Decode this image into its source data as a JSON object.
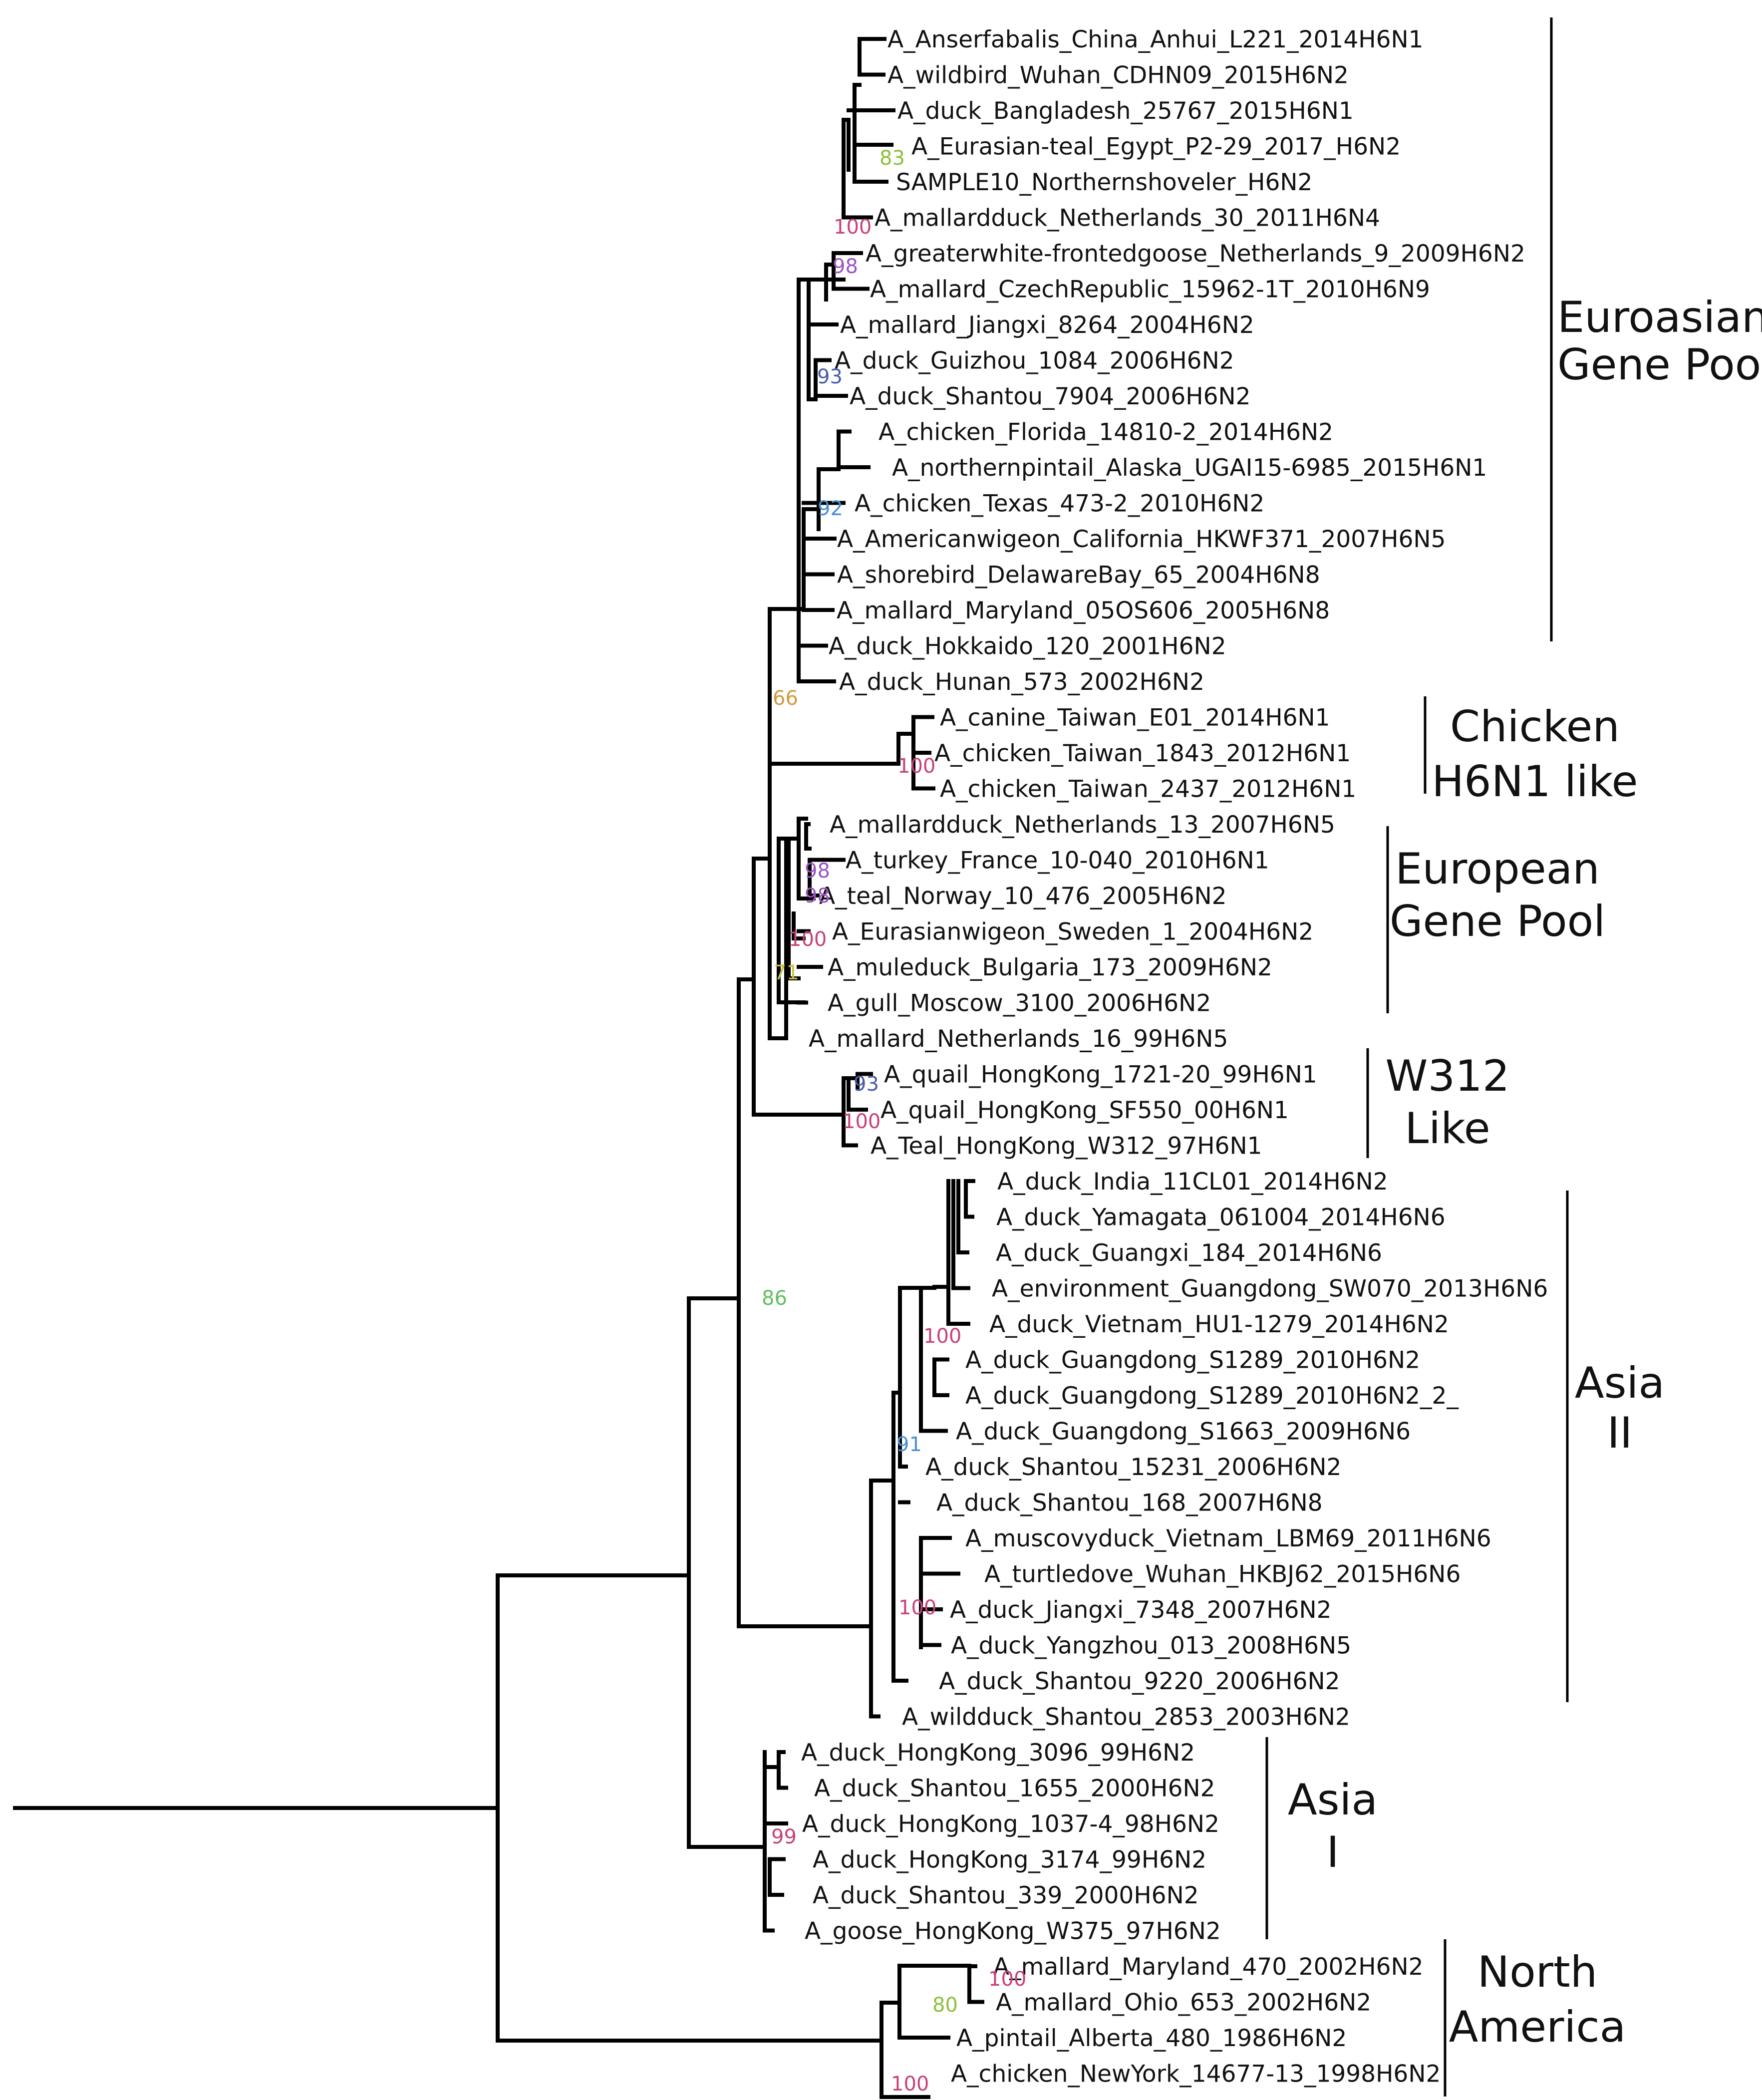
{
  "colors": {
    "default_tip": "#111111",
    "highlight_reference": "#3d4aa0",
    "highlight_sample": "#e0203a",
    "boot_green": "#5fbf5f",
    "boot_lightgreen": "#8dbf3a",
    "boot_magenta": "#c8407a",
    "boot_violet": "#9c52c0",
    "boot_slateblue": "#4a5aa8",
    "boot_blue": "#4a8fd0",
    "boot_orange": "#d09a3a",
    "boot_yellow": "#c8c040"
  },
  "taxa": [
    "A_Anserfabalis_China_Anhui_L221_2014H6N1",
    "A_wildbird_Wuhan_CDHN09_2015H6N2",
    "A_duck_Bangladesh_25767_2015H6N1",
    "A_Eurasian-teal_Egypt_P2-29_2017_H6N2",
    "SAMPLE10_Northernshoveler_H6N2",
    "A_mallardduck_Netherlands_30_2011H6N4",
    "A_greaterwhite-frontedgoose_Netherlands_9_2009H6N2",
    "A_mallard_CzechRepublic_15962-1T_2010H6N9",
    "A_mallard_Jiangxi_8264_2004H6N2",
    "A_duck_Guizhou_1084_2006H6N2",
    "A_duck_Shantou_7904_2006H6N2",
    "A_chicken_Florida_14810-2_2014H6N2",
    "A_northernpintail_Alaska_UGAI15-6985_2015H6N1",
    "A_chicken_Texas_473-2_2010H6N2",
    "A_Americanwigeon_California_HKWF371_2007H6N5",
    "A_shorebird_DelawareBay_65_2004H6N8",
    "A_mallard_Maryland_05OS606_2005H6N8",
    "A_duck_Hokkaido_120_2001H6N2",
    "A_duck_Hunan_573_2002H6N2",
    "A_canine_Taiwan_E01_2014H6N1",
    "A_chicken_Taiwan_1843_2012H6N1",
    "A_chicken_Taiwan_2437_2012H6N1",
    "A_mallardduck_Netherlands_13_2007H6N5",
    "A_turkey_France_10-040_2010H6N1",
    "A_teal_Norway_10_476_2005H6N2",
    "A_Eurasianwigeon_Sweden_1_2004H6N2",
    "A_muleduck_Bulgaria_173_2009H6N2",
    "A_gull_Moscow_3100_2006H6N2",
    "A_mallard_Netherlands_16_99H6N5",
    "A_quail_HongKong_1721-20_99H6N1",
    "A_quail_HongKong_SF550_00H6N1",
    "A_Teal_HongKong_W312_97H6N1",
    "A_duck_India_11CL01_2014H6N2",
    "A_duck_Yamagata_061004_2014H6N6",
    "A_duck_Guangxi_184_2014H6N6",
    "A_environment_Guangdong_SW070_2013H6N6",
    "A_duck_Vietnam_HU1-1279_2014H6N2",
    "A_duck_Guangdong_S1289_2010H6N2",
    "A_duck_Guangdong_S1289_2010H6N2_2_",
    "A_duck_Guangdong_S1663_2009H6N6",
    "A_duck_Shantou_15231_2006H6N2",
    "A_duck_Shantou_168_2007H6N8",
    "A_muscovyduck_Vietnam_LBM69_2011H6N6",
    "A_turtledove_Wuhan_HKBJ62_2015H6N6",
    "A_duck_Jiangxi_7348_2007H6N2",
    "A_duck_Yangzhou_013_2008H6N5",
    "A_duck_Shantou_9220_2006H6N2",
    "A_wildduck_Shantou_2853_2003H6N2",
    "A_duck_HongKong_3096_99H6N2",
    "A_duck_Shantou_1655_2000H6N2",
    "A_duck_HongKong_1037-4_98H6N2",
    "A_duck_HongKong_3174_99H6N2",
    "A_duck_Shantou_339_2000H6N2",
    "A_goose_HongKong_W375_97H6N2",
    "A_mallard_Maryland_470_2002H6N2",
    "A_mallard_Ohio_653_2002H6N2",
    "A_pintail_Alberta_480_1986H6N2",
    "A_chicken_NewYork_14677-13_1998H6N2"
  ],
  "highlighted_taxa": [
    {
      "name": "A_Eurasian-teal_Egypt_P2-29_2017_H6N2",
      "color": "#3d4aa0"
    },
    {
      "name": "SAMPLE10_Northernshoveler_H6N2",
      "color": "#e0203a"
    }
  ],
  "bootstrap_values": [
    {
      "value": "83",
      "color": "#8dbf3a"
    },
    {
      "value": "100",
      "color": "#c8407a"
    },
    {
      "value": "98",
      "color": "#9c52c0"
    },
    {
      "value": "93",
      "color": "#4a5aa8"
    },
    {
      "value": "92",
      "color": "#4a8fd0"
    },
    {
      "value": "66",
      "color": "#d09a3a"
    },
    {
      "value": "100",
      "color": "#c8407a"
    },
    {
      "value": "98",
      "color": "#9c52c0"
    },
    {
      "value": "98",
      "color": "#9c52c0"
    },
    {
      "value": "100",
      "color": "#c8407a"
    },
    {
      "value": "71",
      "color": "#c8c040"
    },
    {
      "value": "93",
      "color": "#4a5aa8"
    },
    {
      "value": "100",
      "color": "#c8407a"
    },
    {
      "value": "86",
      "color": "#5fbf5f"
    },
    {
      "value": "100",
      "color": "#c8407a"
    },
    {
      "value": "91",
      "color": "#4a8fd0"
    },
    {
      "value": "100",
      "color": "#c8407a"
    },
    {
      "value": "99",
      "color": "#c8407a"
    },
    {
      "value": "100",
      "color": "#c8407a"
    },
    {
      "value": "80",
      "color": "#8dbf3a"
    },
    {
      "value": "100",
      "color": "#c8407a"
    }
  ],
  "clades": [
    {
      "line1": "Euroasian",
      "line2": "Gene Pool"
    },
    {
      "line1": "Chicken",
      "line2": "H6N1 like"
    },
    {
      "line1": "European",
      "line2": "Gene Pool"
    },
    {
      "line1": "W312",
      "line2": "Like"
    },
    {
      "line1": "Asia",
      "line2": "II"
    },
    {
      "line1": "Asia",
      "line2": "I"
    },
    {
      "line1": "North",
      "line2": "America"
    }
  ]
}
